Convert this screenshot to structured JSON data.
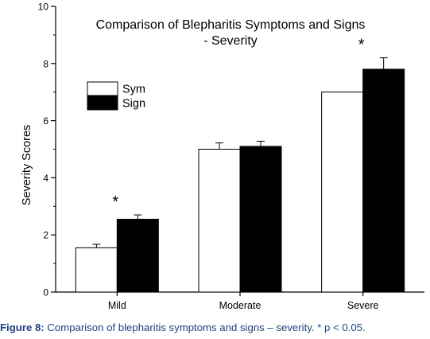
{
  "chart_data": {
    "type": "bar",
    "title_lines": [
      "Comparison of Blepharitis Symptoms and Signs",
      "- Severity"
    ],
    "xlabel": "",
    "ylabel": "Severity Scores",
    "ylim": [
      0,
      10
    ],
    "yticks": [
      "0",
      "2",
      "4",
      "6",
      "8",
      "10"
    ],
    "categories": [
      "Mild",
      "Moderate",
      "Severe"
    ],
    "series": [
      {
        "name": "Sym",
        "values": [
          1.55,
          5.0,
          7.0
        ],
        "errors": [
          0.12,
          0.22,
          0.0
        ],
        "fill": "#ffffff"
      },
      {
        "name": "Sign",
        "values": [
          2.55,
          5.1,
          7.8
        ],
        "errors": [
          0.15,
          0.18,
          0.4
        ],
        "fill": "#000000"
      }
    ],
    "annotations": [
      {
        "category": "Mild",
        "label": "*"
      },
      {
        "category": "Severe",
        "label": "*"
      }
    ],
    "legend_position": "top-left",
    "grid": false
  },
  "caption": {
    "label": "Figure 8:",
    "text": " Comparison of blepharitis symptoms and signs – severity. * p < 0.05."
  }
}
